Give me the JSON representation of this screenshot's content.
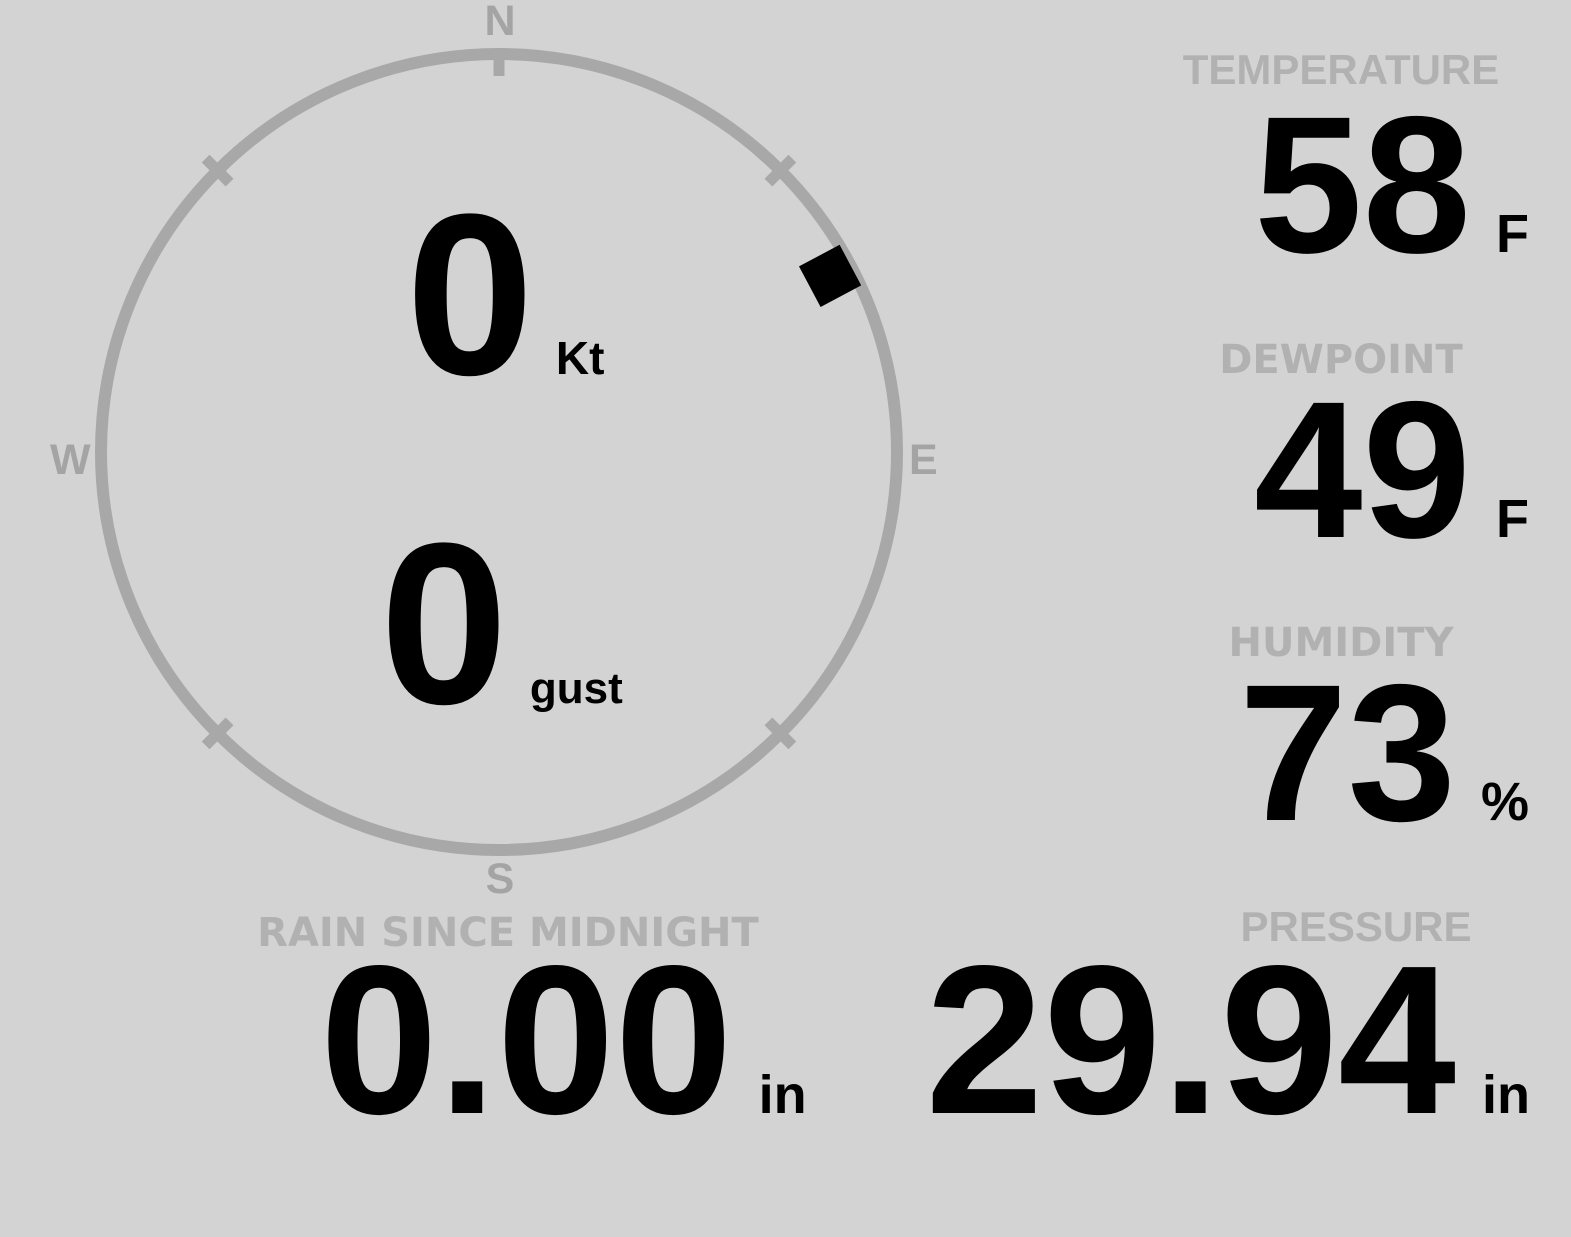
{
  "colors": {
    "background": "#d3d3d3",
    "compass_ring": "#a8a8a8",
    "cardinal_text": "#a4a4a4",
    "section_label": "#b1b1b1",
    "value_text": "#000000",
    "wind_marker": "#000000"
  },
  "compass": {
    "cardinals": {
      "north": "N",
      "east": "E",
      "south": "S",
      "west": "W"
    },
    "wind": {
      "speed": "0",
      "speed_unit": "Kt",
      "gust": "0",
      "gust_unit": "gust"
    },
    "direction_deg": 62
  },
  "metrics": [
    {
      "label": "TEMPERATURE",
      "value": "58",
      "unit": "F"
    },
    {
      "label": "DEWPOINT",
      "value": "49",
      "unit": "F"
    },
    {
      "label": "HUMIDITY",
      "value": "73",
      "unit": "%"
    }
  ],
  "bottom_metrics": [
    {
      "label": "RAIN SINCE MIDNIGHT",
      "value": "0.00",
      "unit": "in"
    },
    {
      "label": "PRESSURE",
      "value": "29.94",
      "unit": "in"
    }
  ]
}
